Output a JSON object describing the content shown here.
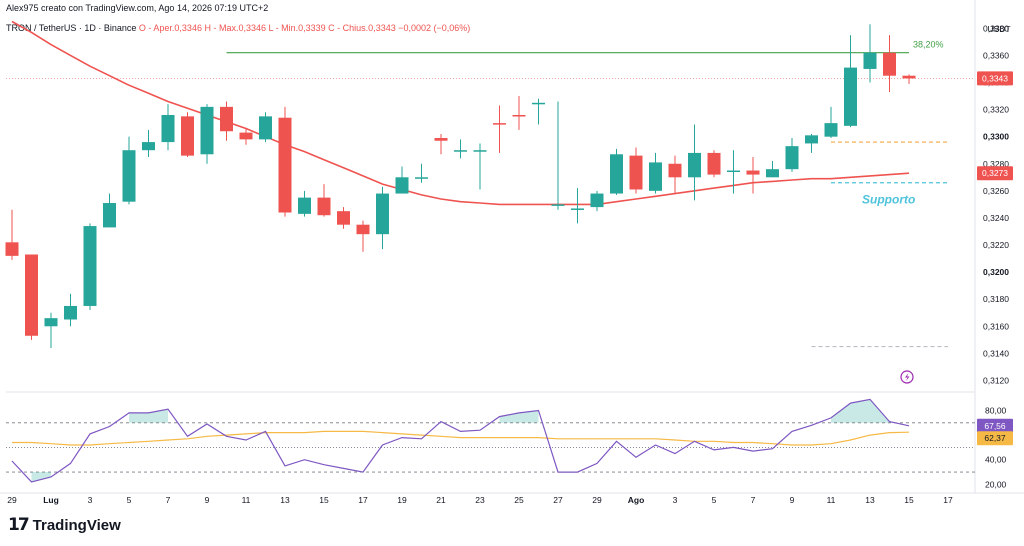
{
  "header": {
    "credit": "Alex975 creato con TradingView.com, Ago 14, 2026 07:19 UTC+2",
    "symbol": "TRON / TetherUS · 1D · Binance",
    "ohlc": "O - Aper.0,3346  H - Max.0,3346  L - Min.0,3339  C - Chius.0,3343  −0,0002 (−0,06%)"
  },
  "branding": {
    "logo_text": "TradingView",
    "logo_mark": "17"
  },
  "price_axis": {
    "currency": "USDT",
    "ticks": [
      "0,3380",
      "0,3360",
      "0,3340",
      "0,3320",
      "0,3300",
      "0,3280",
      "0,3260",
      "0,3240",
      "0,3220",
      "0,3200",
      "0,3180",
      "0,3160",
      "0,3140",
      "0,3120"
    ],
    "bold_ticks": [
      "0,3300",
      "0,3200"
    ],
    "current_price_label": "0,3343",
    "ma_label": "0,3273"
  },
  "indicator_axis": {
    "ticks": [
      "80,00",
      "60,00",
      "40,00",
      "20,00"
    ],
    "rsi_label": "67,56",
    "rsi_ma_label": "62,37"
  },
  "time_axis": {
    "ticks": [
      "29",
      "Lug",
      "3",
      "5",
      "7",
      "9",
      "11",
      "13",
      "15",
      "17",
      "19",
      "21",
      "23",
      "25",
      "27",
      "29",
      "Ago",
      "3",
      "5",
      "7",
      "9",
      "11",
      "13",
      "15",
      "17"
    ]
  },
  "annotations": {
    "fib_label": "38,20%",
    "support_label": "Supporto"
  },
  "colors": {
    "up": "#26a69a",
    "down": "#ef5350",
    "ma": "#ef5350",
    "rsi": "#7e57c2",
    "rsi_ma": "#f6b945",
    "fib": "#43a047",
    "support": "#4fc3dc",
    "dash_orange": "#f6a945"
  },
  "chart_data": {
    "type": "candlestick",
    "interval": "1D",
    "x": [
      "Jun 29",
      "Jun 30",
      "Jul 1",
      "Jul 2",
      "Jul 3",
      "Jul 4",
      "Jul 5",
      "Jul 6",
      "Jul 7",
      "Jul 8",
      "Jul 9",
      "Jul 10",
      "Jul 11",
      "Jul 12",
      "Jul 13",
      "Jul 14",
      "Jul 15",
      "Jul 16",
      "Jul 17",
      "Jul 18",
      "Jul 19",
      "Jul 20",
      "Jul 21",
      "Jul 22",
      "Jul 23",
      "Jul 24",
      "Jul 25",
      "Jul 26",
      "Jul 27",
      "Jul 28",
      "Jul 29",
      "Jul 30",
      "Jul 31",
      "Aug 1",
      "Aug 2",
      "Aug 3",
      "Aug 4",
      "Aug 5",
      "Aug 6",
      "Aug 7",
      "Aug 8",
      "Aug 9",
      "Aug 10",
      "Aug 11",
      "Aug 12",
      "Aug 13",
      "Aug 14"
    ],
    "open": [
      0.3222,
      0.3213,
      0.316,
      0.3165,
      0.3175,
      0.3233,
      0.3252,
      0.329,
      0.3296,
      0.3315,
      0.3287,
      0.3322,
      0.3303,
      0.3298,
      0.3314,
      0.3243,
      0.3255,
      0.3245,
      0.3235,
      0.3228,
      0.3258,
      0.3269,
      0.3299,
      0.329,
      0.3289,
      0.331,
      0.3316,
      0.3325,
      0.325,
      0.3247,
      0.3248,
      0.3258,
      0.3286,
      0.326,
      0.328,
      0.327,
      0.3288,
      0.3275,
      0.3275,
      0.327,
      0.3276,
      0.3295,
      0.33,
      0.3308,
      0.335,
      0.3362,
      0.3345
    ],
    "close": [
      0.3212,
      0.3153,
      0.3166,
      0.3175,
      0.3234,
      0.3251,
      0.329,
      0.3296,
      0.3316,
      0.3286,
      0.3322,
      0.3304,
      0.3298,
      0.3315,
      0.3244,
      0.3255,
      0.3242,
      0.3235,
      0.3228,
      0.3258,
      0.327,
      0.327,
      0.3297,
      0.329,
      0.329,
      0.3309,
      0.3315,
      0.3325,
      0.325,
      0.3247,
      0.3258,
      0.3287,
      0.3261,
      0.3281,
      0.327,
      0.3288,
      0.3272,
      0.3275,
      0.3272,
      0.3276,
      0.3293,
      0.3301,
      0.331,
      0.3351,
      0.3362,
      0.3345,
      0.3343
    ],
    "high": [
      0.3246,
      0.3213,
      0.317,
      0.3184,
      0.3236,
      0.3258,
      0.33,
      0.3305,
      0.3324,
      0.3318,
      0.3324,
      0.3326,
      0.3306,
      0.3318,
      0.3322,
      0.326,
      0.3265,
      0.3248,
      0.3238,
      0.3263,
      0.3278,
      0.328,
      0.3302,
      0.3298,
      0.3295,
      0.3323,
      0.333,
      0.3328,
      0.3326,
      0.3262,
      0.326,
      0.3291,
      0.3292,
      0.3288,
      0.3286,
      0.3309,
      0.329,
      0.329,
      0.3285,
      0.3282,
      0.3299,
      0.3302,
      0.3322,
      0.3375,
      0.3383,
      0.3375,
      0.3346
    ],
    "low": [
      0.3209,
      0.315,
      0.3144,
      0.316,
      0.3172,
      0.3233,
      0.325,
      0.3285,
      0.329,
      0.3285,
      0.328,
      0.3297,
      0.3294,
      0.3296,
      0.3241,
      0.3241,
      0.3241,
      0.3232,
      0.3215,
      0.3217,
      0.326,
      0.3266,
      0.3287,
      0.3284,
      0.3261,
      0.3288,
      0.3305,
      0.3309,
      0.3246,
      0.3236,
      0.3245,
      0.3257,
      0.3258,
      0.3258,
      0.3258,
      0.3253,
      0.327,
      0.3258,
      0.3258,
      0.327,
      0.3274,
      0.3288,
      0.3299,
      0.3307,
      0.334,
      0.3333,
      0.3339
    ],
    "moving_average": [
      0.3385,
      0.3377,
      0.3368,
      0.336,
      0.3352,
      0.3345,
      0.3338,
      0.3332,
      0.3326,
      0.3321,
      0.3316,
      0.3311,
      0.3306,
      0.33,
      0.3294,
      0.3289,
      0.3283,
      0.3277,
      0.3271,
      0.3265,
      0.3261,
      0.3257,
      0.3254,
      0.3252,
      0.3251,
      0.325,
      0.325,
      0.325,
      0.325,
      0.325,
      0.325,
      0.3252,
      0.3254,
      0.3256,
      0.3258,
      0.326,
      0.3262,
      0.3264,
      0.3266,
      0.3267,
      0.3268,
      0.3269,
      0.3269,
      0.327,
      0.3271,
      0.3272,
      0.3273
    ],
    "rsi": [
      39,
      22,
      26,
      37,
      61,
      67,
      78,
      78,
      81,
      59,
      69,
      59,
      56,
      63,
      35,
      40,
      36,
      33,
      30,
      52,
      58,
      57,
      71,
      63,
      64,
      75,
      78,
      80,
      30,
      30,
      37,
      55,
      42,
      52,
      45,
      55,
      48,
      50,
      47,
      49,
      63,
      68,
      74,
      86,
      89,
      71,
      67.56
    ],
    "rsi_ma": [
      54,
      54,
      53,
      52,
      52,
      53,
      54,
      55,
      56,
      57,
      59,
      60,
      61,
      62,
      62,
      62,
      63,
      63,
      63,
      62,
      61,
      60,
      59,
      58,
      58,
      58,
      58,
      58,
      57,
      57,
      57,
      57,
      57,
      57,
      56,
      55,
      55,
      54,
      54,
      53,
      52,
      52,
      53,
      56,
      60,
      62,
      62.37
    ],
    "price_ylim": [
      0.311,
      0.3395
    ],
    "rsi_ylim": [
      13,
      95
    ],
    "rsi_levels": [
      70,
      50,
      30
    ],
    "fib_level": 0.3362,
    "fib_x_range": [
      "Jul 10",
      "Aug 14"
    ],
    "support_level": 0.3266,
    "support_x_range": [
      "Aug 10",
      "Aug 16"
    ],
    "orange_level": 0.3296,
    "orange_x_range": [
      "Aug 10",
      "Aug 16"
    ],
    "gray_dash_level": 0.3145,
    "gray_dash_x_range": [
      "Aug 9",
      "Aug 16"
    ]
  }
}
